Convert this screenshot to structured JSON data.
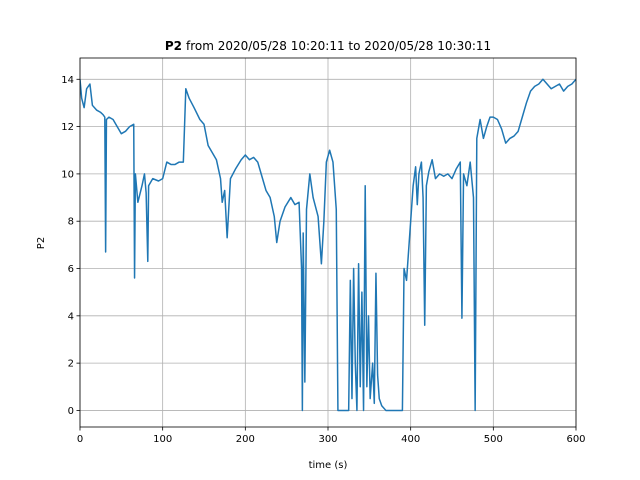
{
  "chart_data": {
    "type": "line",
    "title_name": "P2",
    "title_range": "from 2020/05/28 10:20:11 to 2020/05/28 10:30:11",
    "xlabel": "time (s)",
    "ylabel": "P2",
    "xlim": [
      0,
      600
    ],
    "xticks": [
      0,
      100,
      200,
      300,
      400,
      500,
      600
    ],
    "ylim": [
      -0.7,
      14.9
    ],
    "yticks": [
      0,
      2,
      4,
      6,
      8,
      10,
      12,
      14
    ],
    "grid": true,
    "x": [
      0,
      2,
      5,
      8,
      12,
      15,
      20,
      25,
      28,
      30,
      31,
      32,
      35,
      40,
      45,
      50,
      55,
      60,
      65,
      66,
      67,
      70,
      75,
      78,
      80,
      82,
      83,
      88,
      95,
      100,
      105,
      110,
      115,
      120,
      125,
      128,
      132,
      138,
      145,
      150,
      155,
      160,
      165,
      170,
      172,
      175,
      178,
      182,
      188,
      195,
      200,
      205,
      210,
      215,
      220,
      225,
      230,
      235,
      238,
      242,
      248,
      255,
      260,
      265,
      268,
      269,
      270,
      272,
      274,
      278,
      282,
      288,
      292,
      295,
      298,
      302,
      306,
      310,
      312,
      320,
      325,
      327,
      329,
      331,
      333,
      335,
      337,
      339,
      341,
      343,
      345,
      347,
      349,
      351,
      354,
      356,
      358,
      360,
      362,
      365,
      370,
      380,
      390,
      392,
      395,
      397,
      400,
      403,
      406,
      408,
      410,
      413,
      415,
      417,
      419,
      422,
      426,
      430,
      435,
      440,
      445,
      450,
      455,
      460,
      462,
      464,
      468,
      472,
      476,
      478,
      480,
      484,
      488,
      492,
      496,
      500,
      505,
      510,
      515,
      520,
      525,
      530,
      535,
      540,
      545,
      550,
      555,
      560,
      565,
      570,
      575,
      580,
      585,
      590,
      595,
      600
    ],
    "series": [
      {
        "name": "P2",
        "color": "#1f77b4",
        "values": [
          14,
          13.2,
          12.8,
          13.6,
          13.8,
          12.9,
          12.7,
          12.6,
          12.5,
          12.4,
          6.7,
          12.3,
          12.4,
          12.3,
          12.0,
          11.7,
          11.8,
          12.0,
          12.1,
          5.6,
          10.0,
          8.8,
          9.5,
          10.0,
          9.2,
          6.3,
          9.5,
          9.8,
          9.7,
          9.8,
          10.5,
          10.4,
          10.4,
          10.5,
          10.5,
          13.6,
          13.2,
          12.8,
          12.3,
          12.1,
          11.2,
          10.9,
          10.6,
          9.8,
          8.8,
          9.3,
          7.3,
          9.8,
          10.2,
          10.6,
          10.8,
          10.6,
          10.7,
          10.5,
          9.9,
          9.3,
          9.0,
          8.2,
          7.1,
          8.0,
          8.6,
          9.0,
          8.7,
          8.8,
          6.0,
          0,
          7.5,
          1.2,
          8.5,
          10.0,
          9.0,
          8.2,
          6.2,
          8.0,
          10.5,
          11.0,
          10.5,
          8.5,
          0,
          0,
          0,
          5.5,
          0.5,
          6.0,
          2.0,
          0,
          6.2,
          1.0,
          5.0,
          0,
          9.5,
          1.0,
          4.0,
          0.5,
          2.0,
          0.3,
          5.8,
          1.5,
          0.5,
          0.2,
          0,
          0,
          0,
          6.0,
          5.5,
          6.5,
          8.0,
          9.5,
          10.3,
          8.7,
          10.0,
          10.5,
          9.0,
          3.6,
          9.5,
          10.1,
          10.6,
          9.8,
          10.0,
          9.9,
          10.0,
          9.8,
          10.2,
          10.5,
          3.9,
          10.0,
          9.5,
          10.5,
          9.0,
          0,
          11.5,
          12.3,
          11.5,
          12.0,
          12.4,
          12.4,
          12.3,
          11.9,
          11.3,
          11.5,
          11.6,
          11.8,
          12.4,
          13.0,
          13.5,
          13.7,
          13.8,
          14.0,
          13.8,
          13.6,
          13.7,
          13.8,
          13.5,
          13.7,
          13.8,
          14.0
        ]
      }
    ]
  }
}
